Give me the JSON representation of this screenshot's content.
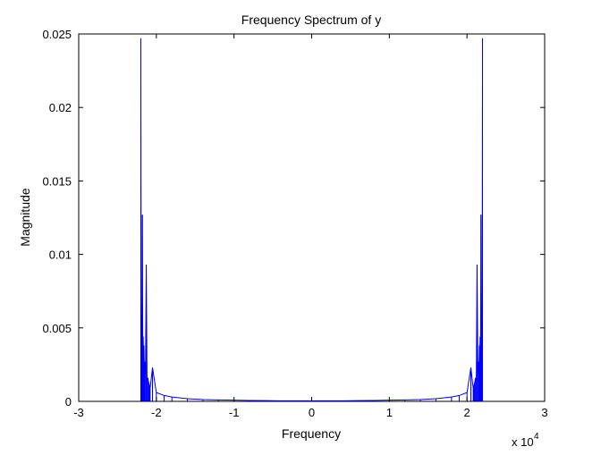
{
  "chart_data": {
    "type": "line",
    "title": "Frequency Spectrum of y",
    "xlabel": "Frequency",
    "ylabel": "Magnitude",
    "x_multiplier_label": {
      "base": "x 10",
      "exponent": "4"
    },
    "xlim": [
      -3,
      3
    ],
    "ylim": [
      0,
      0.025
    ],
    "x_ticks": [
      -3,
      -2,
      -1,
      0,
      1,
      2,
      3
    ],
    "x_tick_labels": [
      "-3",
      "-2",
      "-1",
      "0",
      "1",
      "2",
      "3"
    ],
    "y_ticks": [
      0,
      0.005,
      0.01,
      0.015,
      0.02,
      0.025
    ],
    "y_tick_labels": [
      "0",
      "0.005",
      "0.01",
      "0.015",
      "0.02",
      "0.025"
    ],
    "grid": false,
    "series": [
      {
        "color": "#0000ff",
        "style": "stem",
        "x": [
          -2.2,
          -2.195,
          -2.19,
          -2.185,
          -2.18,
          -2.175,
          -2.17,
          -2.165,
          -2.16,
          -2.155,
          -2.15,
          -2.14,
          -2.13,
          -2.12,
          -2.11,
          -2.1,
          -2.09,
          -2.08,
          -2.05,
          -2.0,
          -1.9,
          -1.8,
          -1.6,
          -1.4,
          -1.2,
          -1.0,
          -0.8,
          -0.6,
          -0.4,
          -0.2,
          0.0,
          0.2,
          0.4,
          0.6,
          0.8,
          1.0,
          1.2,
          1.4,
          1.6,
          1.8,
          1.9,
          2.0,
          2.05,
          2.08,
          2.09,
          2.1,
          2.11,
          2.12,
          2.13,
          2.14,
          2.15,
          2.155,
          2.16,
          2.165,
          2.17,
          2.175,
          2.18,
          2.185,
          2.19,
          2.195,
          2.2
        ],
        "y": [
          0.0247,
          0.0042,
          0.0055,
          0.0036,
          0.0127,
          0.0032,
          0.0044,
          0.0028,
          0.0038,
          0.0023,
          0.0027,
          0.0018,
          0.0093,
          0.0014,
          0.0016,
          0.0013,
          0.0011,
          0.0009,
          0.0023,
          0.0006,
          0.0004,
          0.0003,
          0.00018,
          0.00012,
          0.0001,
          8e-05,
          6e-05,
          5e-05,
          4e-05,
          4e-05,
          4e-05,
          4e-05,
          4e-05,
          5e-05,
          6e-05,
          8e-05,
          0.0001,
          0.00012,
          0.00018,
          0.0003,
          0.0004,
          0.0006,
          0.0023,
          0.0009,
          0.0011,
          0.0013,
          0.0016,
          0.0014,
          0.0093,
          0.0018,
          0.0027,
          0.0023,
          0.0038,
          0.0028,
          0.0044,
          0.0032,
          0.0127,
          0.0036,
          0.0055,
          0.0042,
          0.0247
        ]
      }
    ]
  }
}
